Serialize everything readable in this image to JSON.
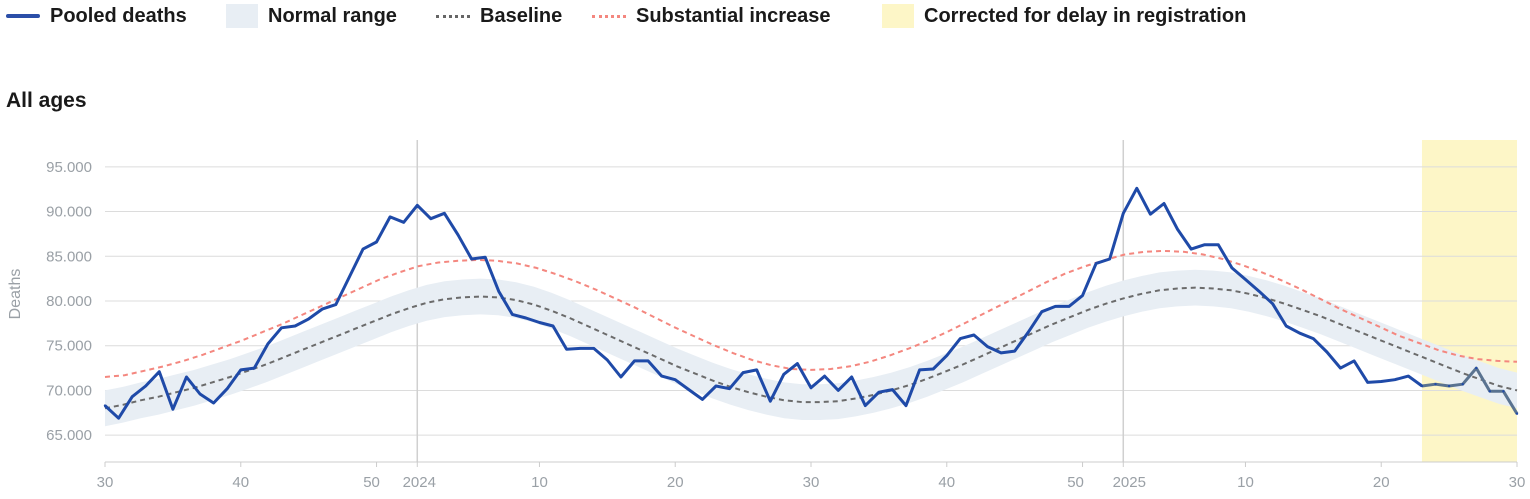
{
  "legend": [
    {
      "label": "Pooled deaths",
      "kind": "line",
      "color": "#1f4aa8"
    },
    {
      "label": "Normal range",
      "kind": "band",
      "color": "#e8eef4"
    },
    {
      "label": "Baseline",
      "kind": "dash",
      "color": "#666666"
    },
    {
      "label": "Substantial increase",
      "kind": "dash",
      "color": "#f4877f"
    },
    {
      "label": "Corrected for delay in registration",
      "kind": "band",
      "color": "#fdf6c7"
    }
  ],
  "chart_data": {
    "type": "line",
    "title": "All ages",
    "xlabel": "",
    "ylabel": "Deaths",
    "ylim": [
      62000,
      98000
    ],
    "y_ticks": [
      "65.000",
      "70.000",
      "75.000",
      "80.000",
      "85.000",
      "90.000",
      "95.000"
    ],
    "x_ticks": [
      "30",
      "40",
      "50",
      "2024",
      "10",
      "20",
      "30",
      "40",
      "50",
      "2025",
      "10",
      "20",
      "30"
    ],
    "x_axis_note": "ISO weeks from 2023 week 30 to 2025 week 30; year labels mark week 1",
    "corrected_region": {
      "from_week_index": 97,
      "to_week_index": 100
    },
    "series": [
      {
        "name": "Pooled deaths",
        "values": [
          68300,
          66900,
          69300,
          70500,
          72100,
          67900,
          71500,
          69600,
          68600,
          70200,
          72300,
          72500,
          75200,
          77000,
          77200,
          78000,
          79100,
          79600,
          82700,
          85800,
          86600,
          89400,
          88800,
          90700,
          89200,
          89800,
          87400,
          84700,
          84900,
          81100,
          78500,
          78100,
          77600,
          77200,
          74600,
          74700,
          74700,
          73400,
          71500,
          73300,
          73300,
          71600,
          71200,
          70100,
          69000,
          70500,
          70200,
          72000,
          72300,
          68800,
          71800,
          73000,
          70300,
          71600,
          70000,
          71500,
          68300,
          69800,
          70100,
          68300,
          72300,
          72400,
          73900,
          75800,
          76200,
          74900,
          74200,
          74400,
          76500,
          78800,
          79400,
          79400,
          80600,
          84200,
          84700,
          89800,
          92600,
          89700,
          90900,
          88000,
          85800,
          86300,
          86300,
          83700,
          82400,
          81100,
          79700,
          77200,
          76400,
          75800,
          74300,
          72500,
          73300,
          70900,
          71000,
          71200,
          71600,
          70500,
          70700,
          70500,
          70700,
          72500,
          69900,
          69900,
          67400
        ]
      },
      {
        "name": "Baseline",
        "values": [
          68000,
          68400,
          68900,
          69300,
          69800,
          70300,
          70900,
          71500,
          72200,
          72900,
          73700,
          74500,
          75300,
          76100,
          76900,
          77700,
          78500,
          79200,
          79800,
          80200,
          80400,
          80500,
          80400,
          80100,
          79600,
          78900,
          78100,
          77200,
          76300,
          75400,
          74500,
          73600,
          72700,
          71900,
          71100,
          70400,
          69800,
          69300,
          68900,
          68700,
          68700,
          68800,
          69100,
          69500,
          70000,
          70600,
          71300,
          72100,
          72900,
          73800,
          74700,
          75600,
          76500,
          77400,
          78200,
          79000,
          79700,
          80300,
          80800,
          81200,
          81400,
          81500,
          81400,
          81200,
          80800,
          80300,
          79700,
          79000,
          78300,
          77500,
          76700,
          75900,
          75100,
          74300,
          73500,
          72700,
          71900,
          71200,
          70500,
          70000
        ]
      },
      {
        "name": "Substantial increase",
        "values": [
          71500,
          71700,
          72200,
          72700,
          73300,
          74000,
          74800,
          75600,
          76500,
          77400,
          78400,
          79400,
          80400,
          81400,
          82400,
          83200,
          83900,
          84300,
          84500,
          84600,
          84500,
          84200,
          83700,
          83000,
          82200,
          81300,
          80300,
          79300,
          78200,
          77100,
          76100,
          75100,
          74200,
          73400,
          72800,
          72400,
          72300,
          72400,
          72700,
          73200,
          73900,
          74700,
          75600,
          76600,
          77700,
          78800,
          79900,
          81000,
          82100,
          83100,
          83900,
          84600,
          85200,
          85500,
          85600,
          85500,
          85200,
          84700,
          84000,
          83200,
          82300,
          81300,
          80200,
          79100,
          78100,
          77100,
          76100,
          75300,
          74500,
          73900,
          73500,
          73300,
          73200
        ]
      }
    ],
    "normal_range_halfwidth": 2000,
    "series_note": "Baseline and Substantial increase are smooth curves sampled across the full range"
  }
}
